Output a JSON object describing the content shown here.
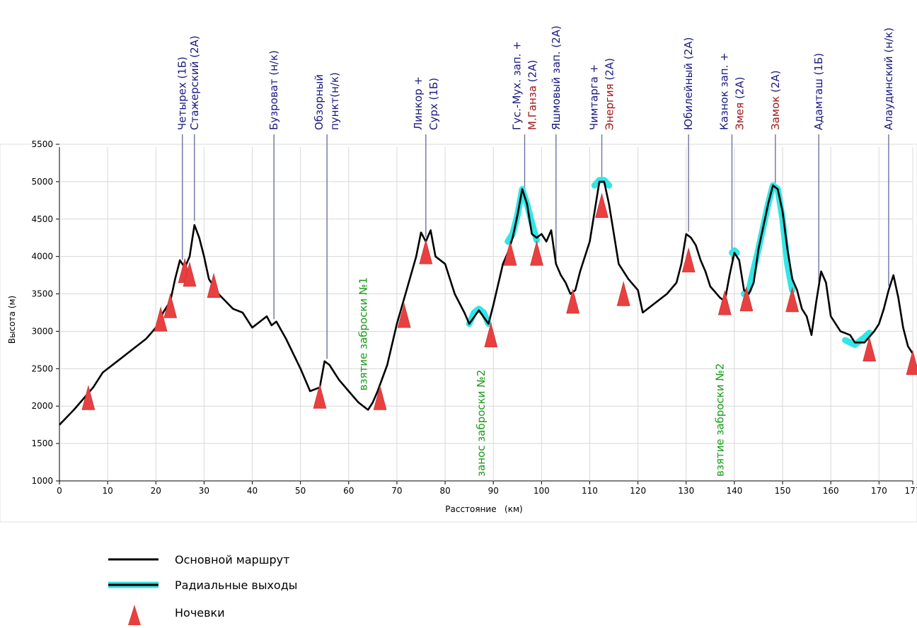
{
  "colors": {
    "main_route": "#000000",
    "radial": "#33e5e5",
    "camp": "#e84040",
    "label_blue": "#1a1a80",
    "label_red": "#a01818",
    "label_green": "#1a9a1a",
    "grid": "#d8d8d8"
  },
  "chart_data": {
    "type": "line",
    "xlabel": "Расстояние   (км)",
    "ylabel": "Высота (м)",
    "xlim": [
      0,
      177
    ],
    "ylim": [
      1000,
      5500
    ],
    "x_ticks": [
      0,
      10,
      20,
      30,
      40,
      50,
      60,
      70,
      80,
      90,
      100,
      110,
      120,
      130,
      140,
      150,
      160,
      170,
      177
    ],
    "y_ticks": [
      1000,
      1500,
      2000,
      2500,
      3000,
      3500,
      4000,
      4500,
      5000,
      5500
    ],
    "grid": true,
    "series": [
      {
        "name": "Основной маршрут",
        "x": [
          0,
          3,
          5,
          7,
          9,
          12,
          15,
          18,
          20,
          21.5,
          23,
          24,
          25,
          26,
          27,
          28,
          29,
          30,
          31,
          33,
          36,
          38,
          40,
          42,
          43,
          44,
          45,
          47,
          50,
          52,
          54,
          55,
          56,
          58,
          60,
          62,
          64,
          65,
          66,
          68,
          70,
          72,
          74,
          75,
          76,
          77,
          78,
          80,
          82,
          84,
          85,
          87,
          89,
          90,
          92,
          93,
          94,
          95,
          96,
          97,
          98,
          99,
          100,
          101,
          102,
          103,
          104,
          105,
          106,
          107,
          108,
          110,
          111,
          112,
          113,
          114,
          115,
          116,
          118,
          120,
          121,
          124,
          126,
          128,
          129,
          130,
          131,
          132,
          133,
          134,
          135,
          137,
          138,
          139,
          140,
          141,
          142,
          143,
          144,
          145,
          147,
          148,
          149,
          150,
          151,
          152,
          153,
          154,
          155,
          156,
          157,
          158,
          159,
          160,
          162,
          164,
          165,
          167,
          169,
          170,
          171,
          172,
          173,
          174,
          175,
          176,
          177
        ],
        "y": [
          1750,
          1950,
          2100,
          2250,
          2450,
          2600,
          2750,
          2900,
          3050,
          3250,
          3400,
          3700,
          3950,
          3850,
          4000,
          4420,
          4250,
          4000,
          3700,
          3500,
          3300,
          3250,
          3050,
          3150,
          3200,
          3080,
          3130,
          2900,
          2500,
          2200,
          2250,
          2600,
          2550,
          2350,
          2200,
          2050,
          1950,
          2050,
          2200,
          2550,
          3100,
          3550,
          4000,
          4320,
          4200,
          4350,
          4000,
          3900,
          3500,
          3250,
          3100,
          3280,
          3100,
          3350,
          3900,
          4050,
          4250,
          4550,
          4900,
          4700,
          4300,
          4250,
          4300,
          4200,
          4350,
          3900,
          3750,
          3650,
          3500,
          3550,
          3800,
          4200,
          4600,
          5000,
          5000,
          4700,
          4300,
          3900,
          3700,
          3550,
          3250,
          3400,
          3500,
          3650,
          3900,
          4300,
          4250,
          4150,
          3950,
          3800,
          3600,
          3450,
          3400,
          3750,
          4050,
          3950,
          3550,
          3500,
          3650,
          4100,
          4700,
          4950,
          4900,
          4600,
          4100,
          3700,
          3550,
          3300,
          3200,
          2950,
          3400,
          3800,
          3650,
          3200,
          3000,
          2950,
          2850,
          2850,
          3000,
          3100,
          3300,
          3550,
          3750,
          3450,
          3050,
          2800,
          2700
        ]
      },
      {
        "name": "Радиальные выходы",
        "segments": [
          {
            "x": [
              85,
              86,
              87,
              88,
              89
            ],
            "y": [
              3100,
              3250,
              3300,
              3250,
              3100
            ]
          },
          {
            "x": [
              93,
              94,
              95,
              96,
              97,
              98,
              99
            ],
            "y": [
              4200,
              4300,
              4550,
              4900,
              4700,
              4450,
              4220
            ]
          },
          {
            "x": [
              111,
              112,
              113,
              114
            ],
            "y": [
              4950,
              5020,
              5020,
              4950
            ]
          },
          {
            "x": [
              139.5,
              140,
              140.5
            ],
            "y": [
              4050,
              4080,
              4050
            ]
          },
          {
            "x": [
              142,
              143,
              145,
              147,
              148,
              149,
              150,
              151,
              152
            ],
            "y": [
              3500,
              3550,
              4100,
              4700,
              4950,
              4900,
              4500,
              3900,
              3550
            ]
          },
          {
            "x": [
              163,
              165,
              166,
              167,
              168
            ],
            "y": [
              2880,
              2820,
              2870,
              2920,
              2980
            ]
          }
        ]
      },
      {
        "name": "Ночевки",
        "type": "markers",
        "x": [
          6,
          21,
          23,
          26,
          27,
          32,
          54,
          66.5,
          71.5,
          76,
          89.5,
          93.5,
          99,
          106.5,
          112.5,
          117,
          130.5,
          138,
          142.5,
          152,
          168,
          177
        ],
        "y": [
          1950,
          3000,
          3180,
          3650,
          3600,
          3450,
          1970,
          1950,
          3050,
          3900,
          2790,
          3880,
          3880,
          3240,
          4520,
          3340,
          3790,
          3220,
          3270,
          3260,
          2600,
          2420
        ]
      }
    ]
  },
  "peaks": [
    {
      "x": 25.5,
      "lines": [
        {
          "text": "Четырех (1Б)",
          "color": "blue"
        }
      ]
    },
    {
      "x": 28,
      "lines": [
        {
          "text": "Стажерский (2А)",
          "color": "blue"
        }
      ]
    },
    {
      "x": 44.5,
      "lines": [
        {
          "text": "Бузроват (н/к)",
          "color": "blue"
        }
      ]
    },
    {
      "x": 55.5,
      "lines": [
        {
          "text": "Обзорный",
          "color": "blue"
        },
        {
          "text": "пункт(н/к)",
          "color": "blue"
        }
      ]
    },
    {
      "x": 76,
      "lines": [
        {
          "text": "Линкор +",
          "color": "blue"
        },
        {
          "text": "Сурх (1Б)",
          "color": "blue"
        }
      ]
    },
    {
      "x": 96.5,
      "lines": [
        {
          "text": "Гус.-Мух. зап. +",
          "color": "blue"
        },
        {
          "text": "М.Ганза (2А)",
          "color": "mixed",
          "parts": [
            {
              "text": "М.Ганза",
              "color": "red"
            },
            {
              "text": " (2А)",
              "color": "blue"
            }
          ]
        }
      ]
    },
    {
      "x": 103,
      "lines": [
        {
          "text": "Яшмовый зап. (2А)",
          "color": "blue"
        }
      ]
    },
    {
      "x": 112.5,
      "lines": [
        {
          "text": "Чимтарга +",
          "color": "blue"
        },
        {
          "text": "Энергия (2А)",
          "color": "mixed",
          "parts": [
            {
              "text": "Энергия",
              "color": "red"
            },
            {
              "text": " (2А)",
              "color": "blue"
            }
          ]
        }
      ]
    },
    {
      "x": 130.5,
      "lines": [
        {
          "text": "Юбилейный (2А)",
          "color": "blue"
        }
      ]
    },
    {
      "x": 139.5,
      "lines": [
        {
          "text": "Казнок зап. +",
          "color": "blue"
        },
        {
          "text": "Змея (2А)",
          "color": "mixed",
          "parts": [
            {
              "text": "Змея",
              "color": "red"
            },
            {
              "text": " (2А)",
              "color": "blue"
            }
          ]
        }
      ]
    },
    {
      "x": 148.5,
      "lines": [
        {
          "text": "Замок (2А)",
          "color": "mixed",
          "parts": [
            {
              "text": "Замок",
              "color": "red"
            },
            {
              "text": " (2А)",
              "color": "blue"
            }
          ]
        }
      ]
    },
    {
      "x": 157.5,
      "lines": [
        {
          "text": "Адамташ (1Б)",
          "color": "blue"
        }
      ]
    },
    {
      "x": 172,
      "lines": [
        {
          "text": "Алаудинский (н/к)",
          "color": "blue"
        }
      ]
    }
  ],
  "annotations": [
    {
      "text": "взятие заброски №1",
      "x": 63,
      "y": 2150
    },
    {
      "text": "занос заброски №2",
      "x": 87.5,
      "y": 1000
    },
    {
      "text": "взятие заброски №2",
      "x": 137,
      "y": 1000
    }
  ],
  "legend": [
    {
      "label": "Основной маршрут",
      "kind": "line"
    },
    {
      "label": "Радиальные выходы",
      "kind": "radial"
    },
    {
      "label": "Ночевки",
      "kind": "camp"
    }
  ]
}
